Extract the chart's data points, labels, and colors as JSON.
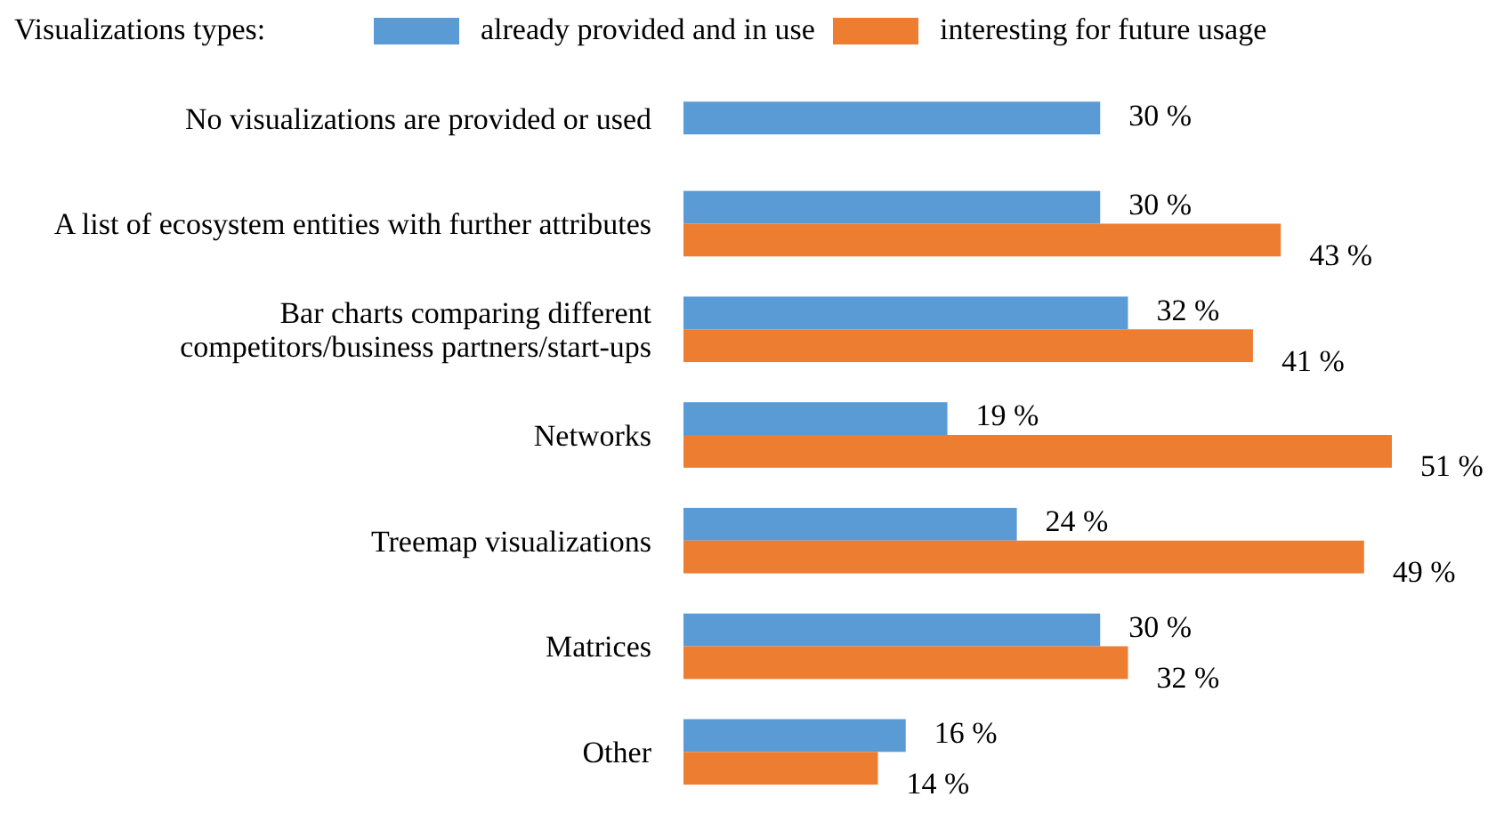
{
  "chart_data": {
    "type": "bar",
    "orientation": "horizontal",
    "legend_title": "Visualizations types:",
    "legend": "top",
    "data_labels": true,
    "categories": [
      "No visualizations are provided or used",
      "A list of ecosystem entities with further attributes",
      "Bar charts comparing different competitors/business partners/start-ups",
      "Networks",
      "Treemap visualizations",
      "Matrices",
      "Other"
    ],
    "series": [
      {
        "name": "already provided and in use",
        "color": "#5b9bd5",
        "values": [
          30,
          30,
          32,
          19,
          24,
          30,
          16
        ],
        "value_labels": [
          "30 %",
          "30 %",
          "32 %",
          "19 %",
          "24 %",
          "30 %",
          "16 %"
        ]
      },
      {
        "name": "interesting for future usage",
        "color": "#ed7d31",
        "values": [
          null,
          43,
          41,
          51,
          49,
          32,
          14
        ],
        "value_labels": [
          null,
          "43 %",
          "41 %",
          "51 %",
          "49 %",
          "32 %",
          "14 %"
        ]
      }
    ]
  }
}
